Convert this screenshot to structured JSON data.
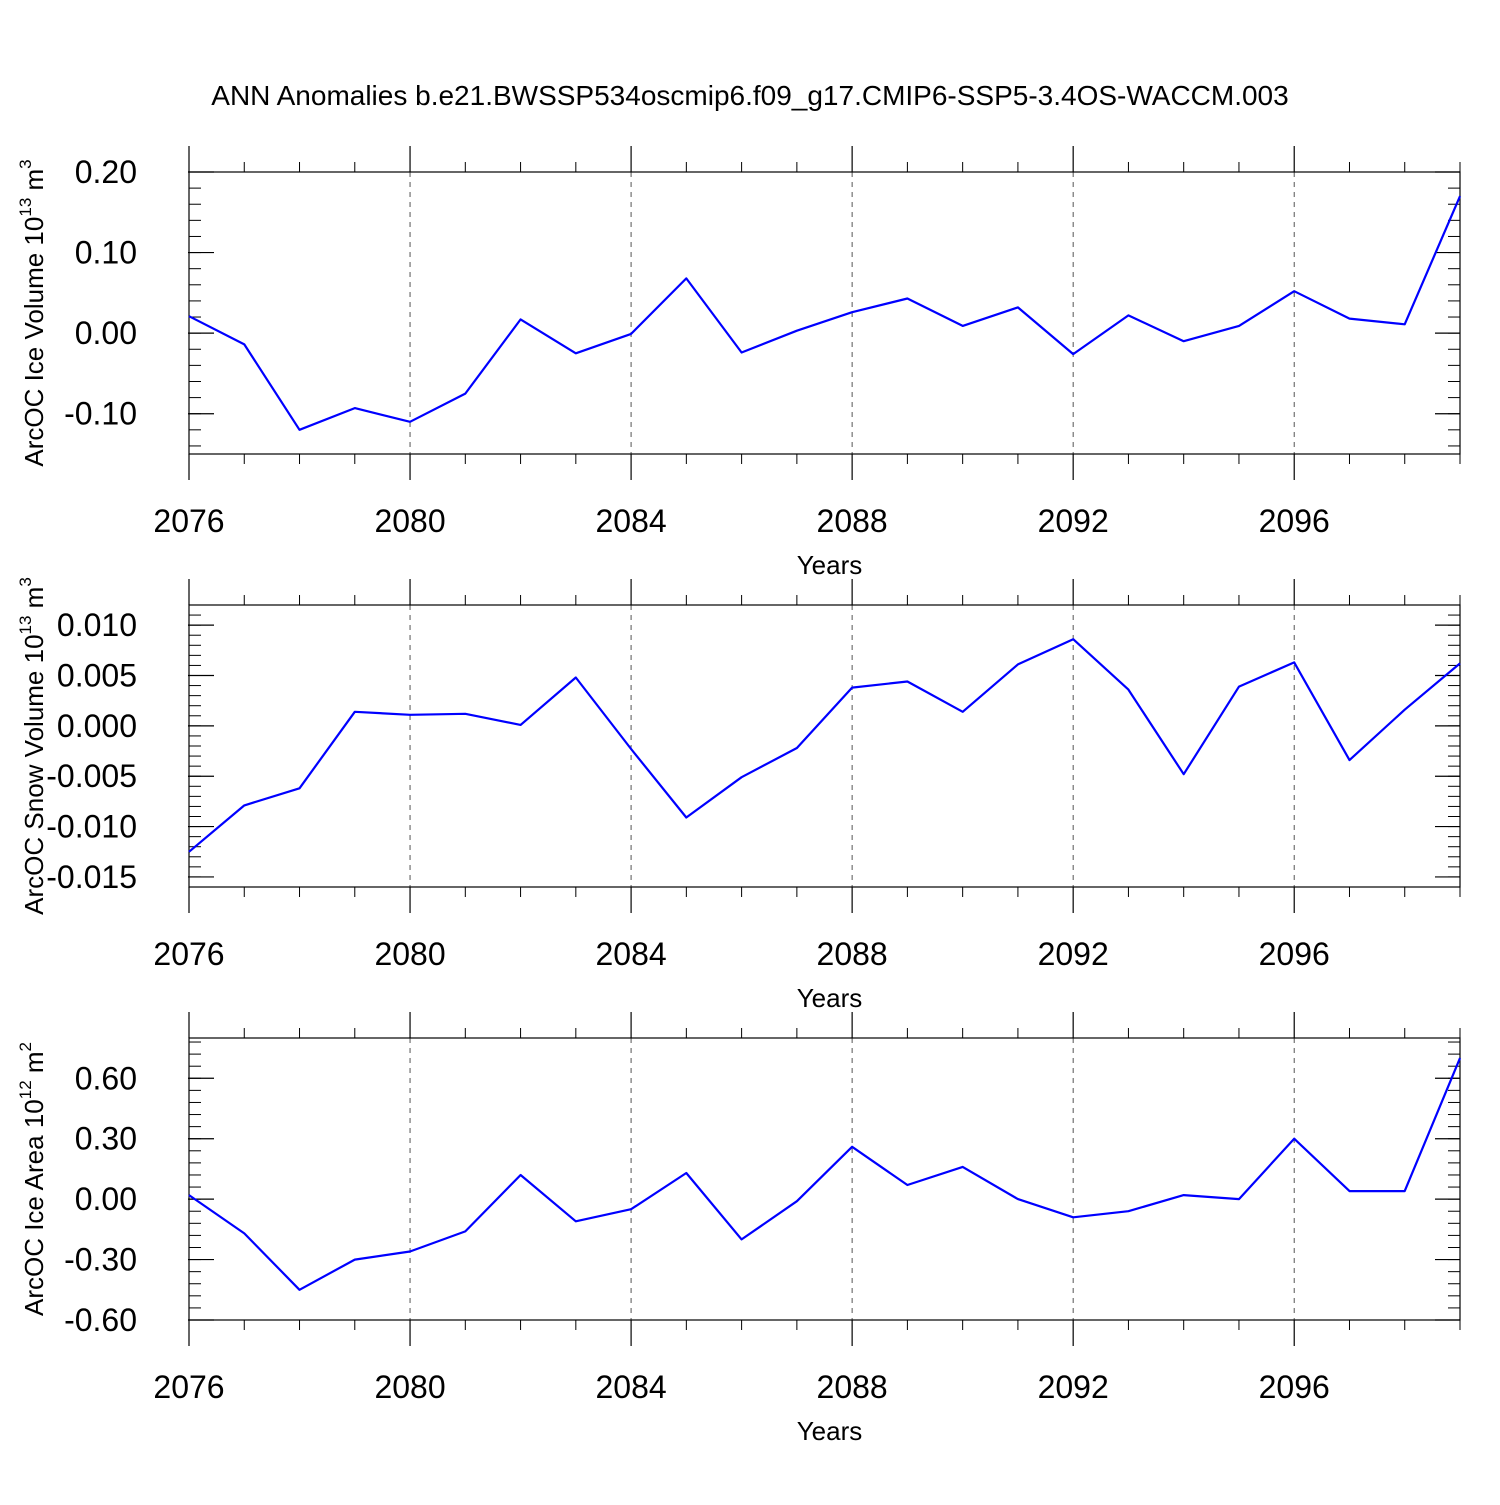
{
  "title": "ANN Anomalies b.e21.BWSSP534oscmip6.f09_g17.CMIP6-SSP5-3.4OS-WACCM.003",
  "line_color": "#0000ff",
  "chart_data": [
    {
      "type": "line",
      "ylabel": "ArcOC Ice Volume 10",
      "ylabel_exp": "13",
      "ylabel_unit": " m",
      "ylabel_unit_exp": "3",
      "xlabel": "Years",
      "xlim": [
        2076,
        2099
      ],
      "ylim": [
        -0.15,
        0.2
      ],
      "xticks": [
        2076,
        2080,
        2084,
        2088,
        2092,
        2096
      ],
      "xtick_labels": [
        "2076",
        "2080",
        "2084",
        "2088",
        "2092",
        "2096"
      ],
      "yticks": [
        -0.1,
        0.0,
        0.1,
        0.2
      ],
      "ytick_labels": [
        "-0.10",
        "0.00",
        "0.10",
        "0.20"
      ],
      "yminor_step": 0.02,
      "grid_x": true,
      "series": [
        {
          "x": [
            2076,
            2077,
            2078,
            2079,
            2080,
            2081,
            2082,
            2083,
            2084,
            2085,
            2086,
            2087,
            2088,
            2089,
            2090,
            2091,
            2092,
            2093,
            2094,
            2095,
            2096,
            2097,
            2098,
            2099
          ],
          "y": [
            0.021,
            -0.014,
            -0.12,
            -0.093,
            -0.11,
            -0.075,
            0.017,
            -0.025,
            -0.001,
            0.068,
            -0.024,
            0.003,
            0.026,
            0.043,
            0.009,
            0.032,
            -0.026,
            0.022,
            -0.01,
            0.009,
            0.052,
            0.018,
            0.011,
            0.17
          ]
        }
      ]
    },
    {
      "type": "line",
      "ylabel": "ArcOC Snow Volume 10",
      "ylabel_exp": "13",
      "ylabel_unit": " m",
      "ylabel_unit_exp": "3",
      "xlabel": "Years",
      "xlim": [
        2076,
        2099
      ],
      "ylim": [
        -0.016,
        0.012
      ],
      "xticks": [
        2076,
        2080,
        2084,
        2088,
        2092,
        2096
      ],
      "xtick_labels": [
        "2076",
        "2080",
        "2084",
        "2088",
        "2092",
        "2096"
      ],
      "yticks": [
        -0.015,
        -0.01,
        -0.005,
        0.0,
        0.005,
        0.01
      ],
      "ytick_labels": [
        "-0.015",
        "-0.010",
        "-0.005",
        "0.000",
        "0.005",
        "0.010"
      ],
      "yminor_step": 0.001,
      "grid_x": true,
      "series": [
        {
          "x": [
            2076,
            2077,
            2078,
            2079,
            2080,
            2081,
            2082,
            2083,
            2084,
            2085,
            2086,
            2087,
            2088,
            2089,
            2090,
            2091,
            2092,
            2093,
            2094,
            2095,
            2096,
            2097,
            2098,
            2099
          ],
          "y": [
            -0.0125,
            -0.0079,
            -0.0062,
            0.0014,
            0.0011,
            0.0012,
            0.0001,
            0.0048,
            -0.0023,
            -0.0091,
            -0.0051,
            -0.0022,
            0.0038,
            0.0044,
            0.0014,
            0.0061,
            0.0086,
            0.0036,
            -0.0048,
            0.0039,
            0.0063,
            -0.0034,
            0.0016,
            0.0062
          ]
        }
      ]
    },
    {
      "type": "line",
      "ylabel": "ArcOC Ice Area 10",
      "ylabel_exp": "12",
      "ylabel_unit": " m",
      "ylabel_unit_exp": "2",
      "xlabel": "Years",
      "xlim": [
        2076,
        2099
      ],
      "ylim": [
        -0.6,
        0.8
      ],
      "xticks": [
        2076,
        2080,
        2084,
        2088,
        2092,
        2096
      ],
      "xtick_labels": [
        "2076",
        "2080",
        "2084",
        "2088",
        "2092",
        "2096"
      ],
      "yticks": [
        -0.6,
        -0.3,
        0.0,
        0.3,
        0.6
      ],
      "ytick_labels": [
        "-0.60",
        "-0.30",
        "0.00",
        "0.30",
        "0.60"
      ],
      "yminor_step": 0.06,
      "grid_x": true,
      "series": [
        {
          "x": [
            2076,
            2077,
            2078,
            2079,
            2080,
            2081,
            2082,
            2083,
            2084,
            2085,
            2086,
            2087,
            2088,
            2089,
            2090,
            2091,
            2092,
            2093,
            2094,
            2095,
            2096,
            2097,
            2098,
            2099
          ],
          "y": [
            0.02,
            -0.17,
            -0.45,
            -0.3,
            -0.26,
            -0.16,
            0.12,
            -0.11,
            -0.05,
            0.13,
            -0.2,
            -0.01,
            0.26,
            0.07,
            0.16,
            0.0,
            -0.09,
            -0.06,
            0.02,
            0.0,
            0.3,
            0.04,
            0.04,
            0.7
          ]
        }
      ]
    }
  ]
}
